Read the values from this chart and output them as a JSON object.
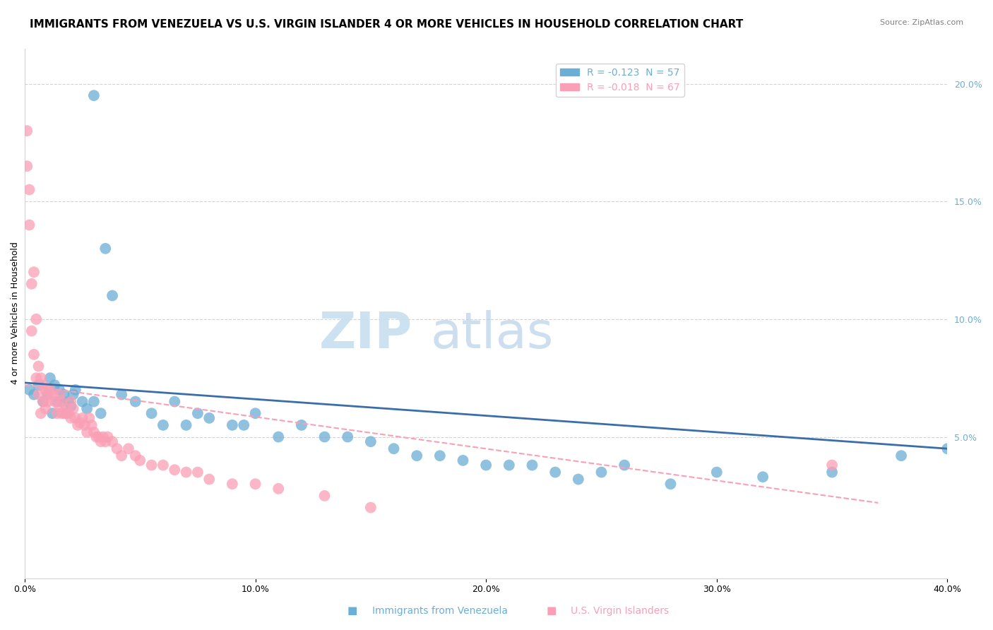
{
  "title": "IMMIGRANTS FROM VENEZUELA VS U.S. VIRGIN ISLANDER 4 OR MORE VEHICLES IN HOUSEHOLD CORRELATION CHART",
  "source": "Source: ZipAtlas.com",
  "ylabel": "4 or more Vehicles in Household",
  "xlim": [
    0.0,
    0.4
  ],
  "ylim": [
    -0.01,
    0.215
  ],
  "xticks": [
    0.0,
    0.1,
    0.2,
    0.3,
    0.4
  ],
  "xticklabels": [
    "0.0%",
    "10.0%",
    "20.0%",
    "30.0%",
    "40.0%"
  ],
  "yticks_right": [
    0.05,
    0.1,
    0.15,
    0.2
  ],
  "yticklabels_right": [
    "5.0%",
    "10.0%",
    "15.0%",
    "20.0%"
  ],
  "legend1_label": "R = -0.123  N = 57",
  "legend2_label": "R = -0.018  N = 67",
  "color_blue": "#6baed6",
  "color_pink": "#fa9fb5",
  "watermark_zip": "ZIP",
  "watermark_atlas": "atlas",
  "blue_scatter_x": [
    0.002,
    0.004,
    0.006,
    0.008,
    0.01,
    0.011,
    0.012,
    0.013,
    0.014,
    0.015,
    0.016,
    0.017,
    0.018,
    0.019,
    0.02,
    0.021,
    0.022,
    0.025,
    0.027,
    0.03,
    0.033,
    0.035,
    0.038,
    0.042,
    0.048,
    0.055,
    0.06,
    0.065,
    0.07,
    0.075,
    0.08,
    0.09,
    0.095,
    0.1,
    0.11,
    0.12,
    0.13,
    0.14,
    0.15,
    0.16,
    0.17,
    0.18,
    0.19,
    0.2,
    0.21,
    0.22,
    0.23,
    0.24,
    0.25,
    0.26,
    0.28,
    0.3,
    0.32,
    0.35,
    0.38,
    0.4,
    0.03
  ],
  "blue_scatter_y": [
    0.07,
    0.068,
    0.072,
    0.065,
    0.068,
    0.075,
    0.06,
    0.072,
    0.065,
    0.07,
    0.065,
    0.068,
    0.06,
    0.065,
    0.063,
    0.068,
    0.07,
    0.065,
    0.062,
    0.065,
    0.06,
    0.13,
    0.11,
    0.068,
    0.065,
    0.06,
    0.055,
    0.065,
    0.055,
    0.06,
    0.058,
    0.055,
    0.055,
    0.06,
    0.05,
    0.055,
    0.05,
    0.05,
    0.048,
    0.045,
    0.042,
    0.042,
    0.04,
    0.038,
    0.038,
    0.038,
    0.035,
    0.032,
    0.035,
    0.038,
    0.03,
    0.035,
    0.033,
    0.035,
    0.042,
    0.045,
    0.195
  ],
  "pink_scatter_x": [
    0.001,
    0.001,
    0.002,
    0.002,
    0.003,
    0.003,
    0.004,
    0.004,
    0.005,
    0.005,
    0.006,
    0.006,
    0.007,
    0.007,
    0.008,
    0.008,
    0.009,
    0.009,
    0.01,
    0.01,
    0.011,
    0.012,
    0.013,
    0.014,
    0.015,
    0.015,
    0.016,
    0.016,
    0.017,
    0.018,
    0.019,
    0.02,
    0.02,
    0.021,
    0.022,
    0.023,
    0.024,
    0.025,
    0.026,
    0.027,
    0.028,
    0.029,
    0.03,
    0.031,
    0.032,
    0.033,
    0.034,
    0.035,
    0.036,
    0.038,
    0.04,
    0.042,
    0.045,
    0.048,
    0.05,
    0.055,
    0.06,
    0.065,
    0.07,
    0.075,
    0.08,
    0.09,
    0.1,
    0.11,
    0.13,
    0.15,
    0.35
  ],
  "pink_scatter_y": [
    0.18,
    0.165,
    0.155,
    0.14,
    0.115,
    0.095,
    0.12,
    0.085,
    0.1,
    0.075,
    0.08,
    0.068,
    0.075,
    0.06,
    0.072,
    0.065,
    0.07,
    0.062,
    0.065,
    0.068,
    0.07,
    0.068,
    0.065,
    0.06,
    0.068,
    0.063,
    0.065,
    0.06,
    0.06,
    0.062,
    0.06,
    0.065,
    0.058,
    0.062,
    0.058,
    0.055,
    0.056,
    0.058,
    0.055,
    0.052,
    0.058,
    0.055,
    0.052,
    0.05,
    0.05,
    0.048,
    0.05,
    0.048,
    0.05,
    0.048,
    0.045,
    0.042,
    0.045,
    0.042,
    0.04,
    0.038,
    0.038,
    0.036,
    0.035,
    0.035,
    0.032,
    0.03,
    0.03,
    0.028,
    0.025,
    0.02,
    0.038
  ],
  "blue_trend_x": [
    0.0,
    0.4
  ],
  "blue_trend_y": [
    0.073,
    0.045
  ],
  "pink_trend_x": [
    0.0,
    0.37
  ],
  "pink_trend_y": [
    0.072,
    0.022
  ],
  "title_fontsize": 11,
  "axis_fontsize": 9,
  "legend_fontsize": 10,
  "watermark_fontsize_zip": 52,
  "watermark_fontsize_atlas": 52,
  "watermark_color_zip": "#c8dff0",
  "watermark_color_atlas": "#b8d0e8",
  "bottom_legend_blue": "Immigrants from Venezuela",
  "bottom_legend_pink": "U.S. Virgin Islanders"
}
